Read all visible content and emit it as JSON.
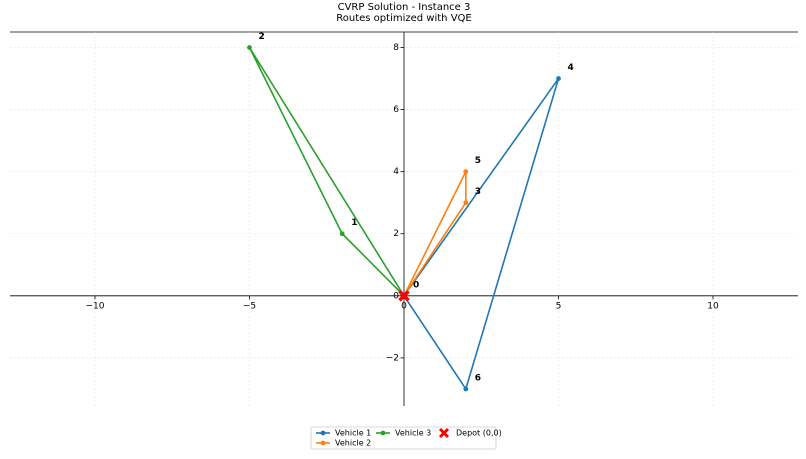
{
  "chart_data": {
    "type": "route",
    "title": "CVRP Solution - Instance 3",
    "subtitle": "Routes optimized with VQE",
    "xlim": [
      -12.75,
      12.75
    ],
    "ylim": [
      -3.55,
      8.5
    ],
    "xticks": [
      {
        "value": -10,
        "label": "−10"
      },
      {
        "value": -5,
        "label": "−5"
      },
      0,
      5,
      10
    ],
    "yticks": [
      {
        "value": -2,
        "label": "−2"
      },
      0,
      2,
      4,
      6,
      8
    ],
    "grid": true,
    "legend": "bottom",
    "series": [
      {
        "name": "Vehicle 1",
        "color": "#1f77b4",
        "x": [
          0,
          5,
          2,
          0
        ],
        "values": [
          0,
          7,
          -3,
          0
        ]
      },
      {
        "name": "Vehicle 2",
        "color": "#ff7f0e",
        "x": [
          0,
          2,
          2,
          0
        ],
        "values": [
          0,
          4,
          3,
          0
        ]
      },
      {
        "name": "Vehicle 3",
        "color": "#2ca02c",
        "x": [
          0,
          -2,
          -5,
          0
        ],
        "values": [
          0,
          2,
          8,
          0
        ]
      }
    ],
    "depot": {
      "name": "Depot (0,0)",
      "color": "#ff0000",
      "x": [
        0
      ],
      "values": [
        0
      ]
    },
    "nodes": {
      "labels": [
        "0",
        "1",
        "2",
        "3",
        "4",
        "5",
        "6"
      ],
      "x": [
        0,
        -2,
        -5,
        2,
        5,
        2,
        2
      ],
      "values": [
        0,
        2,
        8,
        3,
        7,
        4,
        -3
      ]
    }
  }
}
